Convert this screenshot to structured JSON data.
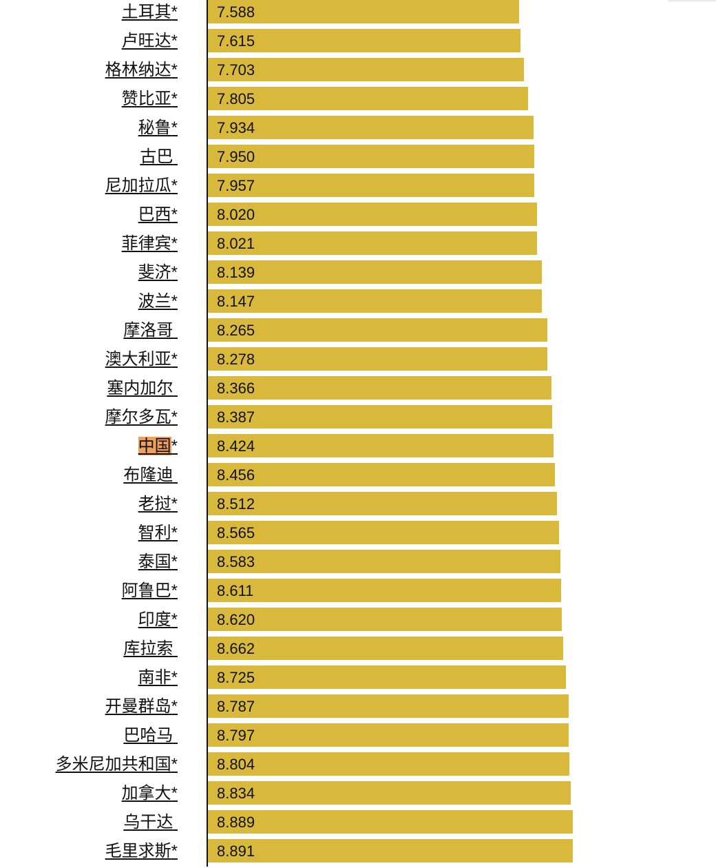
{
  "chart_data": {
    "type": "bar",
    "orientation": "horizontal",
    "categories": [
      "土耳其",
      "卢旺达",
      "格林纳达",
      "赞比亚",
      "秘鲁",
      "古巴",
      "尼加拉瓜",
      "巴西",
      "菲律宾",
      "斐济",
      "波兰",
      "摩洛哥",
      "澳大利亚",
      "塞内加尔",
      "摩尔多瓦",
      "中国",
      "布隆迪",
      "老挝",
      "智利",
      "泰国",
      "阿鲁巴",
      "印度",
      "库拉索",
      "南非",
      "开曼群岛",
      "巴哈马",
      "多米尼加共和国",
      "加拿大",
      "乌干达",
      "毛里求斯"
    ],
    "markers": [
      "*",
      "*",
      "*",
      "*",
      "*",
      " ",
      "*",
      "*",
      "*",
      "*",
      "*",
      " ",
      "*",
      " ",
      "*",
      "*",
      " ",
      "*",
      "*",
      "*",
      "*",
      "*",
      " ",
      "*",
      "*",
      " ",
      "*",
      "*",
      " ",
      "*"
    ],
    "highlighted_category": "中国",
    "values": [
      7.588,
      7.615,
      7.703,
      7.805,
      7.934,
      7.95,
      7.957,
      8.02,
      8.021,
      8.139,
      8.147,
      8.265,
      8.278,
      8.366,
      8.387,
      8.424,
      8.456,
      8.512,
      8.565,
      8.583,
      8.611,
      8.62,
      8.662,
      8.725,
      8.787,
      8.797,
      8.804,
      8.834,
      8.889,
      8.891
    ],
    "value_labels": [
      "7.588",
      "7.615",
      "7.703",
      "7.805",
      "7.934",
      "7.950",
      "7.957",
      "8.020",
      "8.021",
      "8.139",
      "8.147",
      "8.265",
      "8.278",
      "8.366",
      "8.387",
      "8.424",
      "8.456",
      "8.512",
      "8.565",
      "8.583",
      "8.611",
      "8.620",
      "8.662",
      "8.725",
      "8.787",
      "8.797",
      "8.804",
      "8.834",
      "8.889",
      "8.891"
    ],
    "title": "",
    "xlabel": "",
    "ylabel": "",
    "grid": false,
    "colors": {
      "bar": "#d9b93c",
      "highlight": "#f0a058",
      "axis": "#111111"
    }
  }
}
